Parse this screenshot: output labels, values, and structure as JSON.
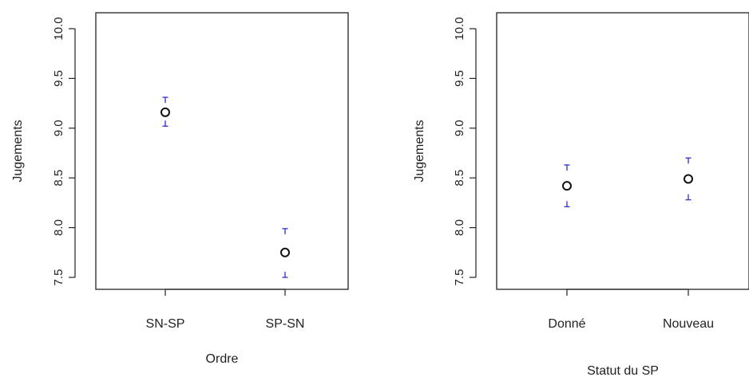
{
  "chart_data": [
    {
      "type": "scatter",
      "title": "",
      "xlabel": "Ordre",
      "ylabel": "Jugements",
      "categories": [
        "SN-SP",
        "SP-SN"
      ],
      "ylim": [
        7.5,
        10.0
      ],
      "yticks": [
        "7.5",
        "8.0",
        "8.5",
        "9.0",
        "9.5",
        "10.0"
      ],
      "series": [
        {
          "values": [
            9.16,
            7.75
          ],
          "lower": [
            9.02,
            7.5
          ],
          "upper": [
            9.31,
            7.99
          ]
        }
      ],
      "grid": false,
      "legend": "none",
      "point_color": "#111111",
      "errorbar_color": "#3b3bd6"
    },
    {
      "type": "scatter",
      "title": "",
      "xlabel": "Statut du SP",
      "ylabel": "Jugements",
      "categories": [
        "Donné",
        "Nouveau"
      ],
      "ylim": [
        7.5,
        10.0
      ],
      "yticks": [
        "7.5",
        "8.0",
        "8.5",
        "9.0",
        "9.5",
        "10.0"
      ],
      "series": [
        {
          "values": [
            8.42,
            8.49
          ],
          "lower": [
            8.21,
            8.28
          ],
          "upper": [
            8.63,
            8.7
          ]
        }
      ],
      "grid": false,
      "legend": "none",
      "point_color": "#111111",
      "errorbar_color": "#3b3bd6"
    }
  ]
}
